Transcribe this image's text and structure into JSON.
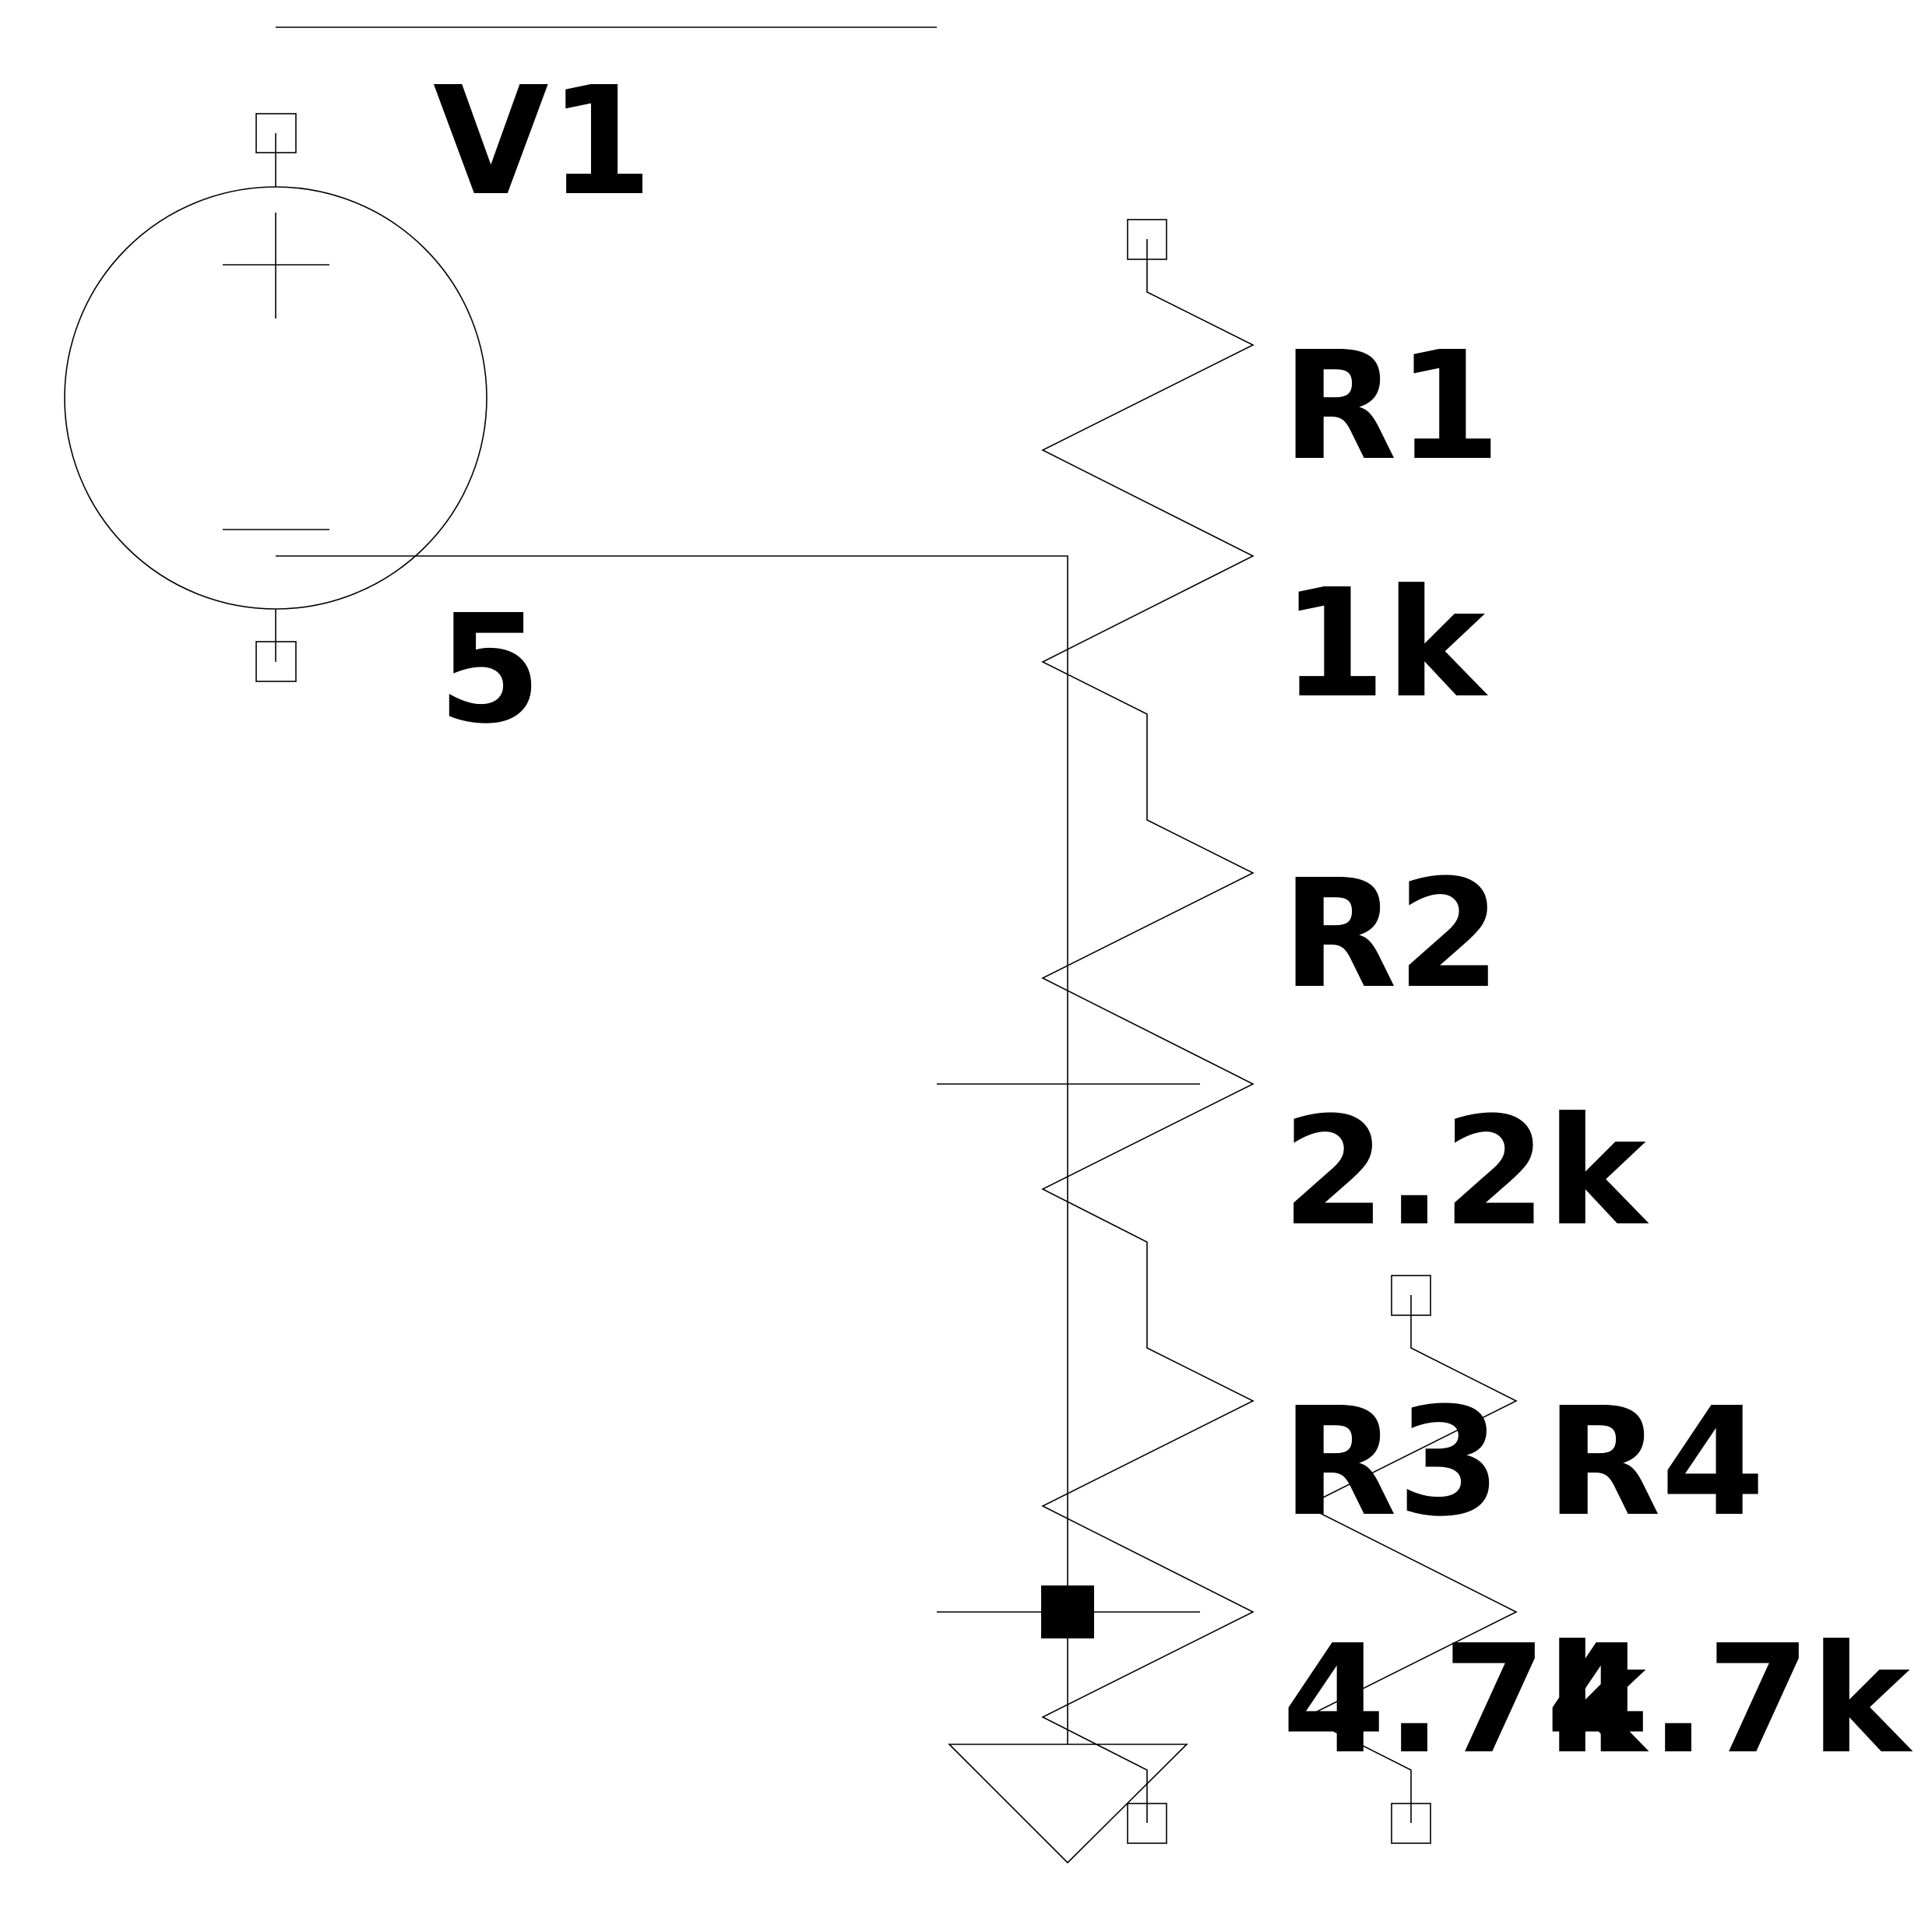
{
  "components": {
    "v1": {
      "name": "V1",
      "value": "5"
    },
    "r1": {
      "name": "R1",
      "value": "1k"
    },
    "r2": {
      "name": "R2",
      "value": "2.2k"
    },
    "r3": {
      "name": "R3",
      "value": "4.7k"
    },
    "r4": {
      "name": "R4",
      "value": "4.7k"
    }
  }
}
